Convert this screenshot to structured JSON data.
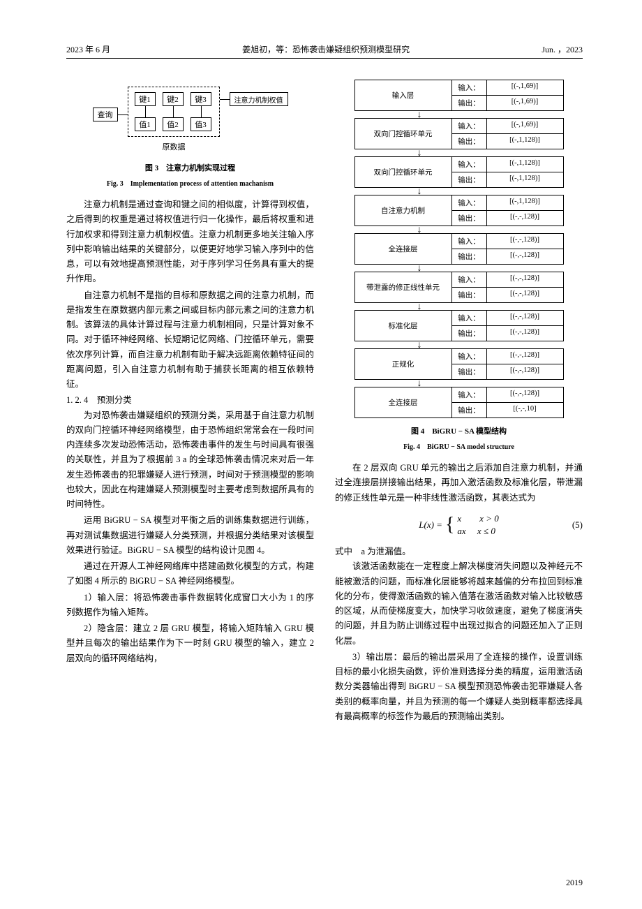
{
  "header": {
    "left": "2023 年 6 月",
    "center": "姜旭初，等：恐怖袭击嫌疑组织预测模型研究",
    "right": "Jun. ，2023"
  },
  "fig3": {
    "query": "查询",
    "key1": "键1",
    "key2": "键2",
    "key3": "键3",
    "val1": "值1",
    "val2": "值2",
    "val3": "值3",
    "output": "注意力机制权值",
    "rawdata": "原数据",
    "caption_cn": "图 3　注意力机制实现过程",
    "caption_en": "Fig. 3　Implementation process of attention machanism"
  },
  "paras_left": [
    "注意力机制是通过查询和键之间的相似度，计算得到权值，之后得到的权重是通过将权值进行归一化操作，最后将权重和进行加权求和得到注意力机制权值。注意力机制更多地关注输入序列中影响输出结果的关键部分，以便更好地学习输入序列中的信息，可以有效地提高预测性能，对于序列学习任务具有重大的提升作用。",
    "自注意力机制不是指的目标和原数据之间的注意力机制，而是指发生在原数据内部元素之间或目标内部元素之间的注意力机制。该算法的具体计算过程与注意力机制相同，只是计算对象不同。对于循环神经网络、长短期记忆网络、门控循环单元，需要依次序列计算，而自注意力机制有助于解决远距离依赖特征间的距离问题，引入自注意力机制有助于捕获长距离的相互依赖特征。"
  ],
  "sec124": "1. 2. 4　预测分类",
  "paras_left2": [
    "为对恐怖袭击嫌疑组织的预测分类，采用基于自注意力机制的双向门控循环神经网络模型，由于恐怖组织常常会在一段时间内连续多次发动恐怖活动，恐怖袭击事件的发生与时间具有很强的关联性，并且为了根据前 3 a 的全球恐怖袭击情况来对后一年发生恐怖袭击的犯罪嫌疑人进行预测，时间对于预测模型的影响也较大，因此在构建嫌疑人预测模型时主要考虑到数据所具有的时间特性。",
    "运用 BiGRU − SA 模型对平衡之后的训练集数据进行训练，再对测试集数据进行嫌疑人分类预测，并根据分类结果对该模型效果进行验证。BiGRU − SA 模型的结构设计见图 4。",
    "通过在开源人工神经网络库中搭建函数化模型的方式，构建了如图 4 所示的 BiGRU − SA 神经网络模型。",
    "1）输入层：将恐怖袭击事件数据转化成窗口大小为 1 的序列数据作为输入矩阵。",
    "2）隐含层：建立 2 层 GRU 模型，将输入矩阵输入 GRU 模型并且每次的输出结果作为下一时刻 GRU 模型的输入，建立 2 层双向的循环网络结构，"
  ],
  "model": {
    "layers": [
      {
        "name": "输入层",
        "in": "[(-,1,69)]",
        "out": "[(-,1,69)]"
      },
      {
        "name": "双向门控循环单元",
        "in": "[(-,1,69)]",
        "out": "[(-,1,128)]"
      },
      {
        "name": "双向门控循环单元",
        "in": "[(-,1,128)]",
        "out": "[(-,1,128)]"
      },
      {
        "name": "自注意力机制",
        "in": "[(-,1,128)]",
        "out": "[(-,-,128)]"
      },
      {
        "name": "全连接层",
        "in": "[(-,-,128)]",
        "out": "[(-,-,128)]"
      },
      {
        "name": "带泄露的修正线性单元",
        "in": "[(-,-,128)]",
        "out": "[(-,-,128)]"
      },
      {
        "name": "标准化层",
        "in": "[(-,-,128)]",
        "out": "[(-,-,128)]"
      },
      {
        "name": "正规化",
        "in": "[(-,-,128)]",
        "out": "[(-,-,128)]"
      },
      {
        "name": "全连接层",
        "in": "[(-,-,128)]",
        "out": "[(-,-,10]"
      }
    ],
    "in_label": "输入：",
    "out_label": "输出：",
    "caption_cn": "图 4　BiGRU − SA 模型结构",
    "caption_en": "Fig. 4　BiGRU − SA model structure"
  },
  "paras_right": [
    "在 2 层双向 GRU 单元的输出之后添加自注意力机制，并通过全连接层拼接输出结果，再加入激活函数及标准化层，带泄漏的修正线性单元是一种非线性激活函数，其表达式为"
  ],
  "eq5": {
    "lhs": "L(x) =",
    "case1": "x　　x > 0",
    "case2": "ax　 x ≤ 0",
    "num": "(5)"
  },
  "where": "式中　a 为泄漏值。",
  "paras_right2": [
    "该激活函数能在一定程度上解决梯度消失问题以及神经元不能被激活的问题，而标准化层能够将越来越偏的分布拉回到标准化的分布，使得激活函数的输入值落在激活函数对输入比较敏感的区域，从而使梯度变大，加快学习收敛速度，避免了梯度消失的问题，并且为防止训练过程中出现过拟合的问题还加入了正则化层。",
    "3）输出层：最后的输出层采用了全连接的操作，设置训练目标的最小化损失函数，评价准则选择分类的精度，运用激活函数分类器输出得到 BiGRU − SA 模型预测恐怖袭击犯罪嫌疑人各类别的概率向量，并且为预测的每一个嫌疑人类别概率都选择具有最高概率的标签作为最后的预测输出类别。"
  ],
  "page": "2019"
}
